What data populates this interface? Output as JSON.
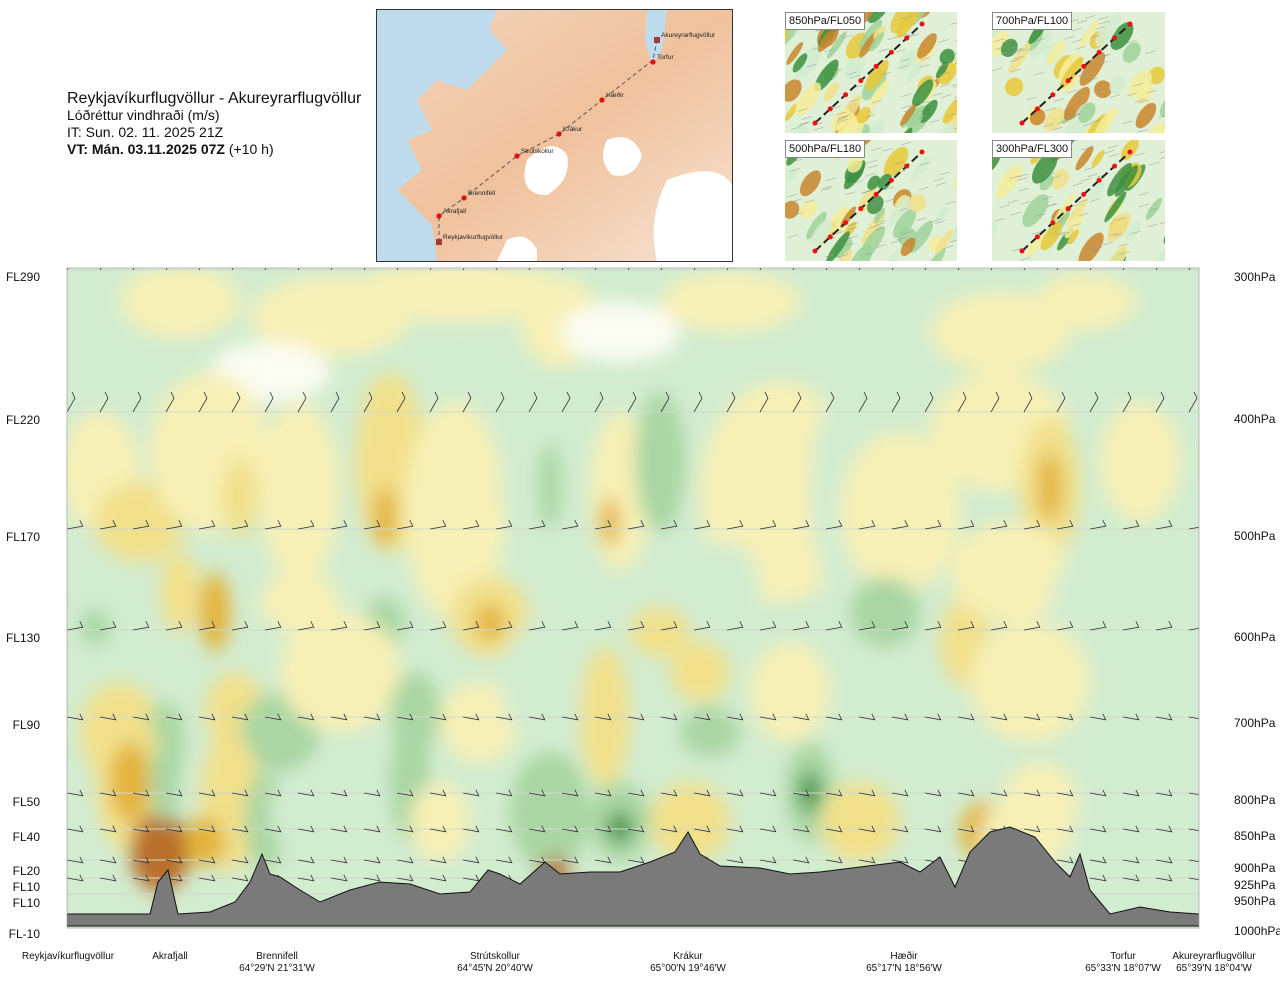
{
  "header": {
    "title": "Reykjavíkurflugvöllur - Akureyrarflugvöllur",
    "subtitle": "Lóðréttur vindhraði (m/s)",
    "issue_time": "IT: Sun. 02. 11. 2025 21Z",
    "valid_time": "VT: Mán. 03.11.2025 07Z",
    "valid_offset": "(+10 h)"
  },
  "route_map": {
    "waypoints": [
      "Akureyrarflugvöllur",
      "Torfur",
      "Hæðir",
      "Krákur",
      "Strútskollur",
      "Brennifell",
      "Akrafjall",
      "Reykjavíkurflugvöllur"
    ]
  },
  "level_maps": [
    {
      "label": "850hPa/FL050"
    },
    {
      "label": "700hPa/FL100"
    },
    {
      "label": "500hPa/FL180"
    },
    {
      "label": "300hPa/FL300"
    }
  ],
  "chart_data": {
    "type": "heatmap",
    "title": "Lóðréttur vindhraði (m/s)",
    "flight_levels": [
      "FL290",
      "FL220",
      "FL170",
      "FL130",
      "FL90",
      "FL50",
      "FL40",
      "FL20",
      "FL10",
      "FL10",
      "FL-10"
    ],
    "pressure_levels": [
      "300hPa",
      "400hPa",
      "500hPa",
      "600hPa",
      "700hPa",
      "800hPa",
      "850hPa",
      "900hPa",
      "925hPa",
      "950hPa",
      "1000hPa"
    ],
    "stations": [
      {
        "name": "Reykjavíkurflugvöllur",
        "coords": ""
      },
      {
        "name": "Akrafjall",
        "coords": ""
      },
      {
        "name": "Brennifell",
        "coords": "64°29'N 21°31'W"
      },
      {
        "name": "Strútskollur",
        "coords": "64°45'N 20°40'W"
      },
      {
        "name": "Krákur",
        "coords": "65°00'N 19°46'W"
      },
      {
        "name": "Hæðir",
        "coords": "65°17'N 18°56'W"
      },
      {
        "name": "Torfur",
        "coords": "65°33'N 18°07'W"
      },
      {
        "name": "Akureyrarflugvöllur",
        "coords": "65°39'N 18°04'W"
      }
    ],
    "colors": {
      "strong_down": "#b8702a",
      "mod_down": "#e3b33a",
      "weak_down": "#f1e08a",
      "slight_down": "#f7f0b6",
      "neutral": "#fbfcf2",
      "slight_up": "#d2ecd0",
      "weak_up": "#a9d6a3",
      "mod_up": "#6fb46d",
      "strong_up": "#2f8a3b",
      "terrain": "#7a7a7a"
    }
  }
}
